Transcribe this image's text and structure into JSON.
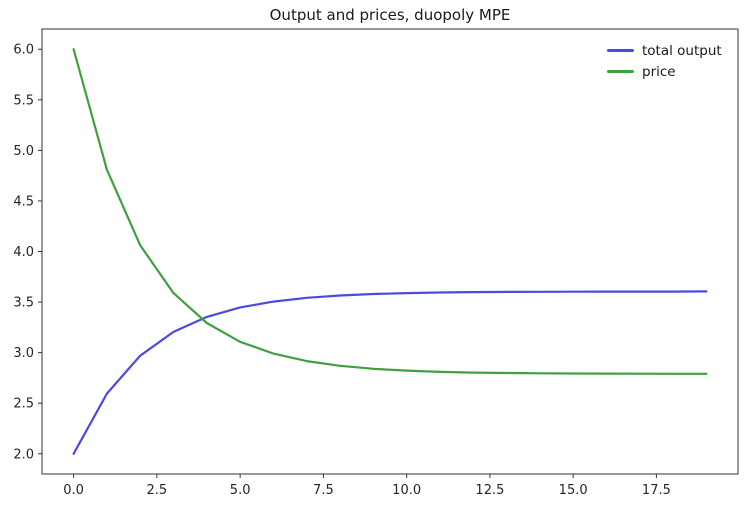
{
  "title": "Output and prices, duopoly MPE",
  "legend": {
    "items": [
      {
        "label": "total output",
        "color": "#4a4ae0"
      },
      {
        "label": "price",
        "color": "#40a040"
      }
    ]
  },
  "chart_data": {
    "type": "line",
    "title": "Output and prices, duopoly MPE",
    "xlabel": "",
    "ylabel": "",
    "grid": false,
    "legend_position": "upper right",
    "xlim": [
      -0.95,
      19.95
    ],
    "ylim": [
      1.8,
      6.2
    ],
    "xticks": [
      0,
      2.5,
      5,
      7.5,
      10,
      12.5,
      15,
      17.5
    ],
    "xtick_labels": [
      "0.0",
      "2.5",
      "5.0",
      "7.5",
      "10.0",
      "12.5",
      "15.0",
      "17.5"
    ],
    "yticks": [
      2.0,
      2.5,
      3.0,
      3.5,
      4.0,
      4.5,
      5.0,
      5.5,
      6.0
    ],
    "ytick_labels": [
      "2.0",
      "2.5",
      "3.0",
      "3.5",
      "4.0",
      "4.5",
      "5.0",
      "5.5",
      "6.0"
    ],
    "x": [
      0,
      1,
      2,
      3,
      4,
      5,
      6,
      7,
      8,
      9,
      10,
      11,
      12,
      13,
      14,
      15,
      16,
      17,
      18,
      19
    ],
    "series": [
      {
        "name": "total output",
        "color": "#4a4ae0",
        "values": [
          2.0,
          2.595,
          2.97,
          3.205,
          3.353,
          3.447,
          3.505,
          3.542,
          3.565,
          3.58,
          3.589,
          3.595,
          3.599,
          3.601,
          3.602,
          3.603,
          3.604,
          3.604,
          3.604,
          3.605
        ]
      },
      {
        "name": "price",
        "color": "#40a040",
        "values": [
          6.0,
          4.809,
          4.061,
          3.589,
          3.293,
          3.107,
          2.99,
          2.916,
          2.87,
          2.84,
          2.822,
          2.81,
          2.803,
          2.799,
          2.796,
          2.794,
          2.793,
          2.792,
          2.791,
          2.791
        ]
      }
    ]
  },
  "axes": {
    "spine_color": "#333333",
    "tick_label_color": "#262626"
  }
}
